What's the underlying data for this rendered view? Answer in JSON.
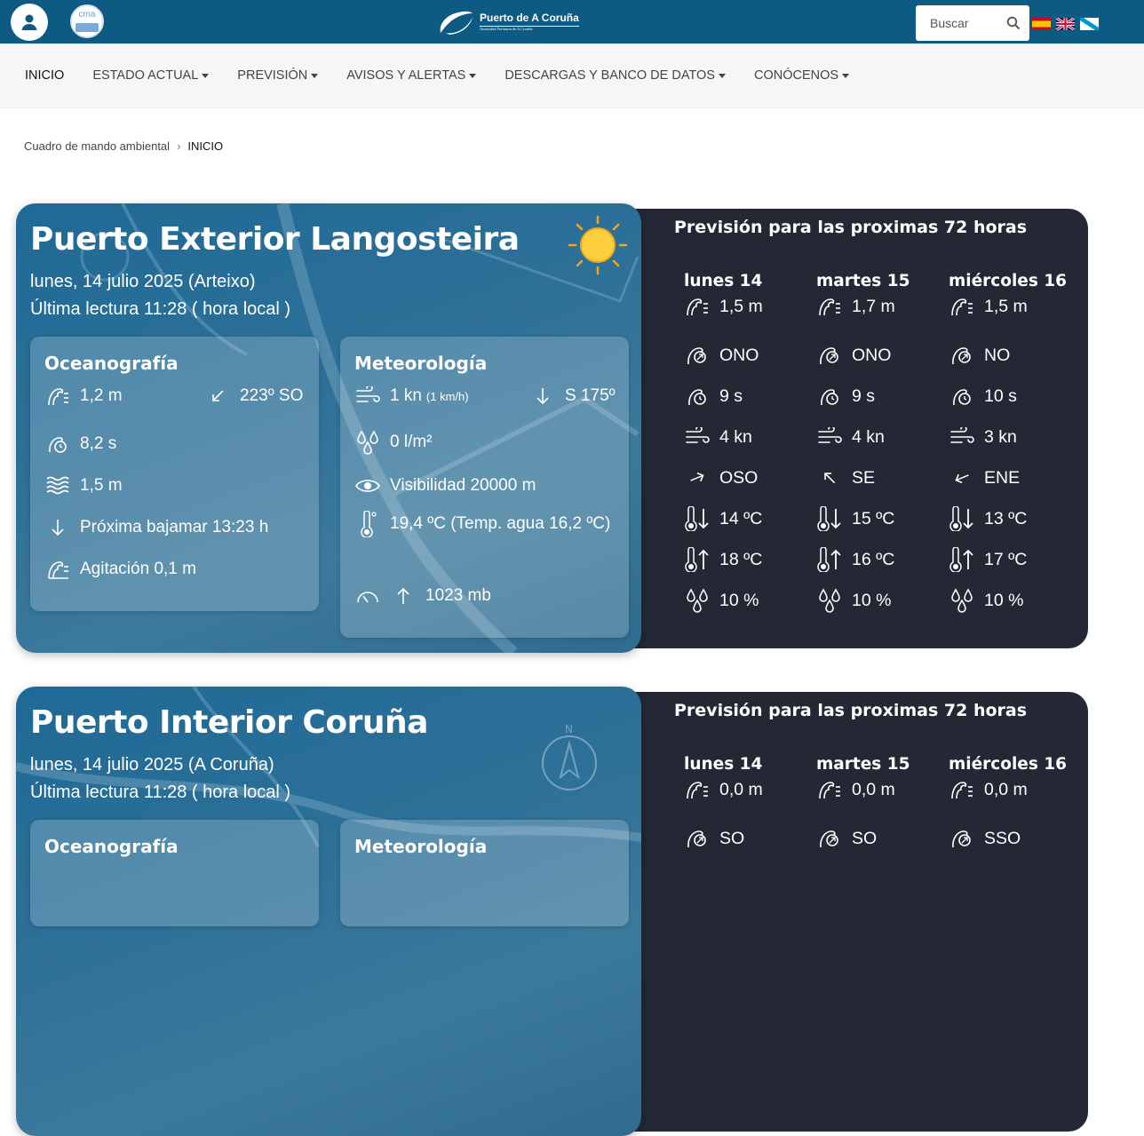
{
  "header": {
    "brand_title": "Puerto de A Coruña",
    "brand_subtitle": "Autoridad Portuaria de A Coruña",
    "cma_logo_text": "cma",
    "search_placeholder": "Buscar",
    "languages": [
      "es",
      "en",
      "gl"
    ],
    "theme_color": "#0d5a82"
  },
  "nav": {
    "items": [
      {
        "label": "INICIO",
        "dropdown": false
      },
      {
        "label": "ESTADO ACTUAL",
        "dropdown": true
      },
      {
        "label": "PREVISIÓN",
        "dropdown": true
      },
      {
        "label": "AVISOS Y ALERTAS",
        "dropdown": true
      },
      {
        "label": "DESCARGAS Y BANCO DE DATOS",
        "dropdown": true
      },
      {
        "label": "CONÓCENOS",
        "dropdown": true
      }
    ]
  },
  "breadcrumb": {
    "parent": "Cuadro de mando ambiental",
    "current": "INICIO"
  },
  "stations": [
    {
      "title": "Puerto Exterior Langosteira",
      "date": "lunes, 14 julio 2025 (Arteixo)",
      "reading": "Última lectura 11:28 ( hora local )",
      "oceanography": {
        "title": "Oceanografía",
        "wave_height": "1,2 m",
        "wave_direction": "223º SO",
        "wave_period": "8,2 s",
        "sea_level": "1,5 m",
        "tide": "Próxima bajamar 13:23 h",
        "agitation": "Agitación 0,1 m"
      },
      "meteorology": {
        "title": "Meteorología",
        "wind_speed": "1 kn",
        "wind_speed_kmh": "(1 km/h)",
        "wind_direction": "S 175º",
        "rain": "0 l/m²",
        "visibility": "Visibilidad 20000 m",
        "temperature": "19,4 ºC (Temp. agua 16,2 ºC)",
        "pressure": "1023 mb"
      },
      "forecast": {
        "title": "Previsión para las proximas 72 horas",
        "days": [
          {
            "day": "lunes 14",
            "wave_height": "1,5 m",
            "wave_dir": "ONO",
            "period": "9 s",
            "wind_speed": "4 kn",
            "wind_dir": "OSO",
            "t_min": "14 ºC",
            "t_max": "18 ºC",
            "rain_prob": "10 %"
          },
          {
            "day": "martes 15",
            "wave_height": "1,7 m",
            "wave_dir": "ONO",
            "period": "9 s",
            "wind_speed": "4 kn",
            "wind_dir": "SE",
            "t_min": "15 ºC",
            "t_max": "16 ºC",
            "rain_prob": "10 %"
          },
          {
            "day": "miércoles 16",
            "wave_height": "1,5 m",
            "wave_dir": "NO",
            "period": "10 s",
            "wind_speed": "3 kn",
            "wind_dir": "ENE",
            "t_min": "13 ºC",
            "t_max": "17 ºC",
            "rain_prob": "10 %"
          }
        ]
      }
    },
    {
      "title": "Puerto Interior Coruña",
      "date": "lunes, 14 julio 2025 (A Coruña)",
      "reading": "Última lectura 11:28 ( hora local )",
      "oceanography": {
        "title": "Oceanografía"
      },
      "meteorology": {
        "title": "Meteorología"
      },
      "forecast": {
        "title": "Previsión para las proximas 72 horas",
        "days": [
          {
            "day": "lunes 14",
            "wave_height": "0,0 m",
            "wave_dir": "SO"
          },
          {
            "day": "martes 15",
            "wave_height": "0,0 m",
            "wave_dir": "SO"
          },
          {
            "day": "miércoles 16",
            "wave_height": "0,0 m",
            "wave_dir": "SSO"
          }
        ]
      }
    }
  ]
}
